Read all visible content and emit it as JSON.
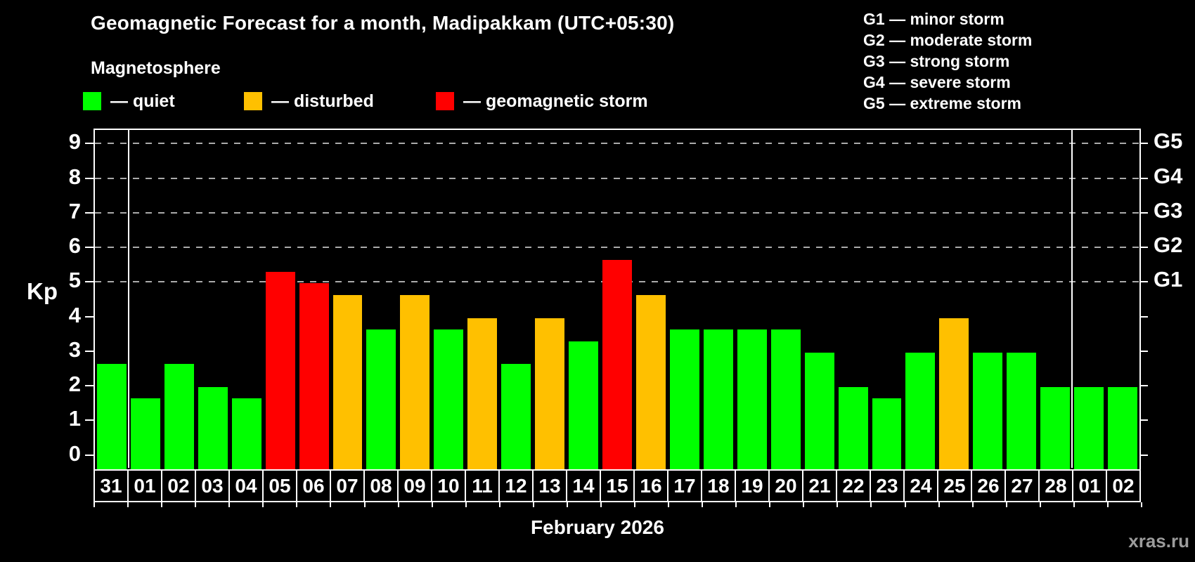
{
  "title": "Geomagnetic Forecast for a month, Madipakkam (UTC+05:30)",
  "subtitle": "Magnetosphere",
  "legend": {
    "quiet": "— quiet",
    "disturbed": "— disturbed",
    "storm": "— geomagnetic storm"
  },
  "g_legend": [
    "G1 — minor storm",
    "G2 — moderate storm",
    "G3 — strong storm",
    "G4 — severe storm",
    "G5 — extreme storm"
  ],
  "axis": {
    "kp_label": "Kp",
    "left_ticks": [
      "0",
      "1",
      "2",
      "3",
      "4",
      "5",
      "6",
      "7",
      "8",
      "9"
    ],
    "right_labels": [
      {
        "kp": 5,
        "label": "G1"
      },
      {
        "kp": 6,
        "label": "G2"
      },
      {
        "kp": 7,
        "label": "G3"
      },
      {
        "kp": 8,
        "label": "G4"
      },
      {
        "kp": 9,
        "label": "G5"
      }
    ],
    "grid_levels": [
      5,
      6,
      7,
      8,
      9
    ]
  },
  "colors": {
    "quiet": "#00ff00",
    "disturbed": "#ffc000",
    "storm": "#ff0000",
    "grid": "#aaaaaa",
    "watermark": "#9c9c9c"
  },
  "footer": {
    "month": "February 2026",
    "watermark": "xras.ru"
  },
  "chart_data": {
    "type": "bar",
    "title": "Geomagnetic Forecast for a month, Madipakkam (UTC+05:30)",
    "ylabel": "Kp",
    "xlabel": "February 2026",
    "ylim": [
      -0.37,
      9.39
    ],
    "grid": "dashed horizontal at Kp 5-9 (G1-G5)",
    "legend_position": "top",
    "x": [
      "31",
      "01",
      "02",
      "03",
      "04",
      "05",
      "06",
      "07",
      "08",
      "09",
      "10",
      "11",
      "12",
      "13",
      "14",
      "15",
      "16",
      "17",
      "18",
      "19",
      "20",
      "21",
      "22",
      "23",
      "24",
      "25",
      "26",
      "27",
      "28",
      "01",
      "02"
    ],
    "values": [
      2.67,
      1.67,
      2.67,
      2.0,
      1.67,
      5.33,
      5.0,
      4.67,
      3.67,
      4.67,
      3.67,
      4.0,
      2.67,
      4.0,
      3.33,
      5.67,
      4.67,
      3.67,
      3.67,
      3.67,
      3.67,
      3.0,
      2.0,
      1.67,
      3.0,
      4.0,
      3.0,
      3.0,
      2.0,
      2.0,
      2.0
    ],
    "status": [
      "quiet",
      "quiet",
      "quiet",
      "quiet",
      "quiet",
      "storm",
      "storm",
      "disturbed",
      "quiet",
      "disturbed",
      "quiet",
      "disturbed",
      "quiet",
      "disturbed",
      "quiet",
      "storm",
      "disturbed",
      "quiet",
      "quiet",
      "quiet",
      "quiet",
      "quiet",
      "quiet",
      "quiet",
      "quiet",
      "disturbed",
      "quiet",
      "quiet",
      "quiet",
      "quiet",
      "quiet"
    ],
    "separators_after": [
      1,
      29
    ]
  }
}
